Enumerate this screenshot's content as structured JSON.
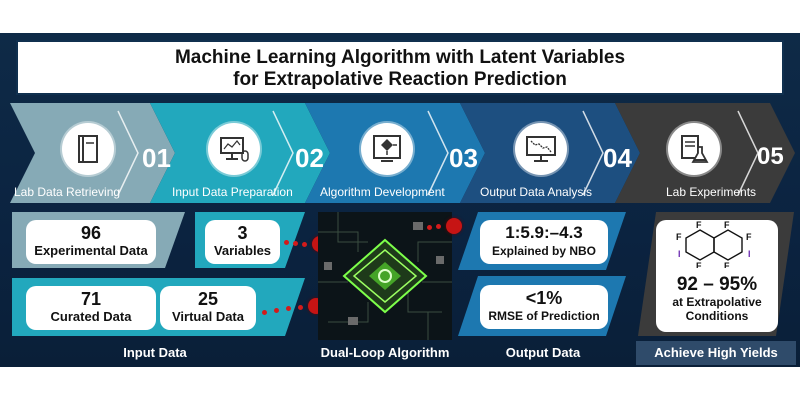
{
  "title": {
    "line1": "Machine Learning Algorithm with Latent Variables",
    "line2": "for Extrapolative Reaction Prediction"
  },
  "steps": [
    {
      "number": "01",
      "label": "Lab Data Retrieving",
      "icon": "book-icon",
      "color": "#7fa8b5"
    },
    {
      "number": "02",
      "label": "Input Data Preparation",
      "icon": "computer-mouse-icon",
      "color": "#1aa3b8"
    },
    {
      "number": "03",
      "label": "Algorithm Development",
      "icon": "flowchart-icon",
      "color": "#1a6fa8"
    },
    {
      "number": "04",
      "label": "Output Data Analysis",
      "icon": "monitor-chart-icon",
      "color": "#1d4e7d"
    },
    {
      "number": "05",
      "label": "Lab Experiments",
      "icon": "document-flask-icon",
      "color": "#3a3a3a"
    }
  ],
  "input_data": {
    "experimental": {
      "value": "96",
      "label": "Experimental Data"
    },
    "variables": {
      "value": "3",
      "label": "Variables"
    },
    "curated": {
      "value": "71",
      "label": "Curated Data"
    },
    "virtual": {
      "value": "25",
      "label": "Virtual Data"
    },
    "footer": "Input Data"
  },
  "algorithm": {
    "footer": "Dual-Loop Algorithm"
  },
  "output_data": {
    "ratio": {
      "value": "1:5.9:–4.3",
      "label": "Explained by NBO"
    },
    "rmse": {
      "value": "<1%",
      "label": "RMSE of Prediction"
    },
    "footer": "Output Data"
  },
  "yields": {
    "value": "92 – 95%",
    "label_line1": "at Extrapolative",
    "label_line2": "Conditions",
    "footer": "Achieve High Yields",
    "molecule_atoms": [
      "F",
      "F",
      "F",
      "F",
      "F",
      "F",
      "I",
      "I"
    ]
  }
}
